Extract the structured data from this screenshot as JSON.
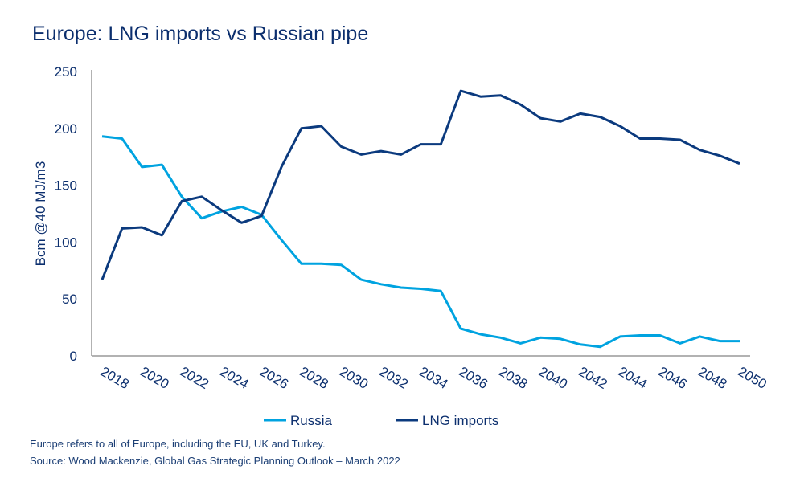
{
  "chart_data": {
    "type": "line",
    "title": "Europe: LNG imports vs Russian pipe",
    "ylabel": "Bcm @40 MJ/m3",
    "xlabel": "",
    "ylim": [
      0,
      250
    ],
    "yticks": [
      0,
      50,
      100,
      150,
      200,
      250
    ],
    "xticks": [
      2018,
      2020,
      2022,
      2024,
      2026,
      2028,
      2030,
      2032,
      2034,
      2036,
      2038,
      2040,
      2042,
      2044,
      2046,
      2048,
      2050
    ],
    "grid": false,
    "legend_position": "bottom",
    "x": [
      2018,
      2019,
      2020,
      2021,
      2022,
      2023,
      2024,
      2025,
      2026,
      2027,
      2028,
      2029,
      2030,
      2031,
      2032,
      2033,
      2034,
      2035,
      2036,
      2037,
      2038,
      2039,
      2040,
      2041,
      2042,
      2043,
      2044,
      2045,
      2046,
      2047,
      2048,
      2049,
      2050
    ],
    "series": [
      {
        "name": "Russia",
        "color": "#00a3e0",
        "values": [
          193,
          191,
          166,
          168,
          140,
          121,
          127,
          131,
          124,
          102,
          81,
          81,
          80,
          67,
          63,
          60,
          59,
          57,
          24,
          19,
          16,
          11,
          16,
          15,
          10,
          8,
          17,
          18,
          18,
          11,
          17,
          13,
          13
        ]
      },
      {
        "name": "LNG imports",
        "color": "#0b3a7e",
        "values": [
          67,
          112,
          113,
          106,
          136,
          140,
          128,
          117,
          123,
          166,
          200,
          202,
          184,
          177,
          180,
          177,
          186,
          186,
          233,
          228,
          229,
          221,
          209,
          206,
          213,
          210,
          202,
          191,
          191,
          190,
          181,
          176,
          169
        ]
      }
    ]
  },
  "footnotes": [
    "Europe refers to all of Europe, including the EU, UK and Turkey.",
    "Source: Wood Mackenzie, Global Gas Strategic Planning Outlook – March 2022"
  ]
}
